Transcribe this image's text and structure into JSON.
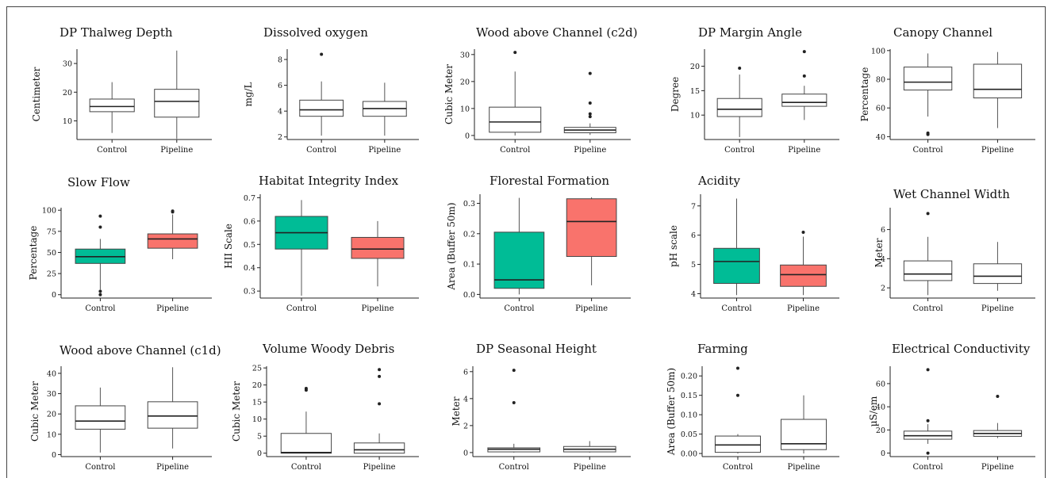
{
  "chart_data": [
    {
      "type": "box",
      "title": "DP Thalweg Depth",
      "ylabel": "Centimeter",
      "yticks": [
        10,
        20,
        30
      ],
      "ylim": [
        3.5,
        35
      ],
      "categories": [
        "Control",
        "Pipeline"
      ],
      "fill": [
        "#ffffff",
        "#ffffff"
      ],
      "boxes": [
        {
          "min": 5.8,
          "q1": 13.2,
          "median": 15,
          "q3": 17.6,
          "max": 23.5,
          "outliers": []
        },
        {
          "min": 3.8,
          "q1": 11.3,
          "median": 16.8,
          "q3": 21,
          "max": 34.5,
          "outliers": []
        }
      ]
    },
    {
      "type": "box",
      "title": "Dissolved oxygen",
      "ylabel": "mg/L",
      "yticks": [
        2,
        4,
        6,
        8
      ],
      "ylim": [
        1.8,
        8.8
      ],
      "categories": [
        "Control",
        "Pipeline"
      ],
      "fill": [
        "#ffffff",
        "#ffffff"
      ],
      "boxes": [
        {
          "min": 2.1,
          "q1": 3.6,
          "median": 4.1,
          "q3": 4.85,
          "max": 6.3,
          "outliers": [
            8.4
          ]
        },
        {
          "min": 2.1,
          "q1": 3.6,
          "median": 4.2,
          "q3": 4.75,
          "max": 6.2,
          "outliers": []
        }
      ]
    },
    {
      "type": "box",
      "title": "Wood above Channel (c2d)",
      "ylabel": "Cubic Meter",
      "yticks": [
        0,
        10,
        20,
        30
      ],
      "ylim": [
        -1.5,
        32
      ],
      "categories": [
        "Control",
        "Pipeline"
      ],
      "fill": [
        "#ffffff",
        "#ffffff"
      ],
      "boxes": [
        {
          "min": 0,
          "q1": 1.2,
          "median": 5,
          "q3": 10.5,
          "max": 23.7,
          "outliers": [
            30.8
          ]
        },
        {
          "min": 0.2,
          "q1": 1,
          "median": 2,
          "q3": 3,
          "max": 4.5,
          "outliers": [
            7,
            8,
            12,
            23
          ]
        }
      ]
    },
    {
      "type": "box",
      "title": "DP Margin Angle",
      "ylabel": "Degree",
      "yticks": [
        10,
        15,
        20
      ],
      "ylim": [
        5,
        23.5
      ],
      "categories": [
        "Control",
        "Pipeline"
      ],
      "fill": [
        "#ffffff",
        "#ffffff"
      ],
      "boxes": [
        {
          "min": 5.5,
          "q1": 9.7,
          "median": 11.2,
          "q3": 13.4,
          "max": 18.3,
          "outliers": [
            19.6
          ]
        },
        {
          "min": 9,
          "q1": 11.8,
          "median": 12.6,
          "q3": 14.3,
          "max": 16,
          "outliers": [
            18,
            23
          ]
        }
      ]
    },
    {
      "type": "box",
      "title": "Canopy Channel",
      "ylabel": "Percentage",
      "yticks": [
        40,
        60,
        80,
        100
      ],
      "ylim": [
        38,
        101
      ],
      "categories": [
        "Control",
        "Pipeline"
      ],
      "fill": [
        "#ffffff",
        "#ffffff"
      ],
      "boxes": [
        {
          "min": 54,
          "q1": 72.5,
          "median": 78,
          "q3": 88.5,
          "max": 98,
          "outliers": [
            41.5,
            42.5
          ]
        },
        {
          "min": 46,
          "q1": 67,
          "median": 73,
          "q3": 90.5,
          "max": 99,
          "outliers": []
        }
      ]
    },
    {
      "type": "box",
      "title": "Slow Flow",
      "ylabel": "Percentage",
      "yticks": [
        0,
        25,
        50,
        75,
        100
      ],
      "ylim": [
        -4,
        103
      ],
      "categories": [
        "Control",
        "Pipeline"
      ],
      "fill": [
        "#00bc96",
        "#f9736c"
      ],
      "boxes": [
        {
          "min": 6,
          "q1": 37,
          "median": 45,
          "q3": 54,
          "max": 66,
          "outliers": [
            0,
            4,
            80,
            93
          ]
        },
        {
          "min": 42,
          "q1": 55,
          "median": 66,
          "q3": 72,
          "max": 95,
          "outliers": [
            98,
            99
          ]
        }
      ]
    },
    {
      "type": "box",
      "title": "Habitat Integrity Index",
      "ylabel": "HII Scale",
      "yticks": [
        0.3,
        0.4,
        0.5,
        0.6,
        0.7
      ],
      "ylim": [
        0.27,
        0.715
      ],
      "categories": [
        "Control",
        "Pipeline"
      ],
      "fill": [
        "#00bc96",
        "#f9736c"
      ],
      "boxes": [
        {
          "min": 0.28,
          "q1": 0.48,
          "median": 0.55,
          "q3": 0.62,
          "max": 0.69,
          "outliers": []
        },
        {
          "min": 0.32,
          "q1": 0.44,
          "median": 0.48,
          "q3": 0.53,
          "max": 0.6,
          "outliers": []
        }
      ]
    },
    {
      "type": "box",
      "title": "Florestal Formation",
      "ylabel": "Area (Buffer 50m)",
      "yticks": [
        0.0,
        0.1,
        0.2,
        0.3
      ],
      "ylim": [
        -0.012,
        0.33
      ],
      "categories": [
        "Control",
        "Pipeline"
      ],
      "fill": [
        "#00bc96",
        "#f9736c"
      ],
      "boxes": [
        {
          "min": 0,
          "q1": 0.02,
          "median": 0.048,
          "q3": 0.205,
          "max": 0.318,
          "outliers": []
        },
        {
          "min": 0.03,
          "q1": 0.125,
          "median": 0.24,
          "q3": 0.315,
          "max": 0.32,
          "outliers": []
        }
      ]
    },
    {
      "type": "box",
      "title": "Acidity",
      "ylabel": "pH scale",
      "yticks": [
        4,
        5,
        6,
        7
      ],
      "ylim": [
        3.85,
        7.4
      ],
      "categories": [
        "Control",
        "Pipeline"
      ],
      "fill": [
        "#00bc96",
        "#f9736c"
      ],
      "boxes": [
        {
          "min": 3.95,
          "q1": 4.35,
          "median": 5.1,
          "q3": 5.55,
          "max": 7.25,
          "outliers": []
        },
        {
          "min": 3.95,
          "q1": 4.25,
          "median": 4.65,
          "q3": 4.98,
          "max": 5.95,
          "outliers": [
            6.1
          ]
        }
      ]
    },
    {
      "type": "box",
      "title": "Wet Channel Width",
      "ylabel": "Meter",
      "yticks": [
        2,
        4,
        6
      ],
      "ylim": [
        1.3,
        7.5
      ],
      "categories": [
        "Control",
        "Pipeline"
      ],
      "fill": [
        "#ffffff",
        "#ffffff"
      ],
      "boxes": [
        {
          "min": 1.5,
          "q1": 2.5,
          "median": 2.95,
          "q3": 3.85,
          "max": 5.5,
          "outliers": [
            7.1
          ]
        },
        {
          "min": 1.8,
          "q1": 2.3,
          "median": 2.8,
          "q3": 3.65,
          "max": 5.15,
          "outliers": []
        }
      ]
    },
    {
      "type": "box",
      "title": "Wood above Channel (c1d)",
      "ylabel": "Cubic Meter",
      "yticks": [
        0,
        10,
        20,
        30,
        40
      ],
      "ylim": [
        -1,
        43.5
      ],
      "categories": [
        "Control",
        "Pipeline"
      ],
      "fill": [
        "#ffffff",
        "#ffffff"
      ],
      "boxes": [
        {
          "min": 1,
          "q1": 12.5,
          "median": 16.5,
          "q3": 24,
          "max": 33,
          "outliers": []
        },
        {
          "min": 3,
          "q1": 13,
          "median": 19,
          "q3": 26,
          "max": 43,
          "outliers": []
        }
      ]
    },
    {
      "type": "box",
      "title": "Volume Woody Debris",
      "ylabel": "Cubic Meter",
      "yticks": [
        0,
        5,
        10,
        15,
        20,
        25
      ],
      "ylim": [
        -1,
        25.5
      ],
      "categories": [
        "Control",
        "Pipeline"
      ],
      "fill": [
        "#ffffff",
        "#ffffff"
      ],
      "boxes": [
        {
          "min": 0,
          "q1": 0,
          "median": 0.2,
          "q3": 5.8,
          "max": 12.2,
          "outliers": [
            18.5,
            19
          ]
        },
        {
          "min": 0,
          "q1": 0,
          "median": 1,
          "q3": 3,
          "max": 5.8,
          "outliers": [
            14.5,
            22.5,
            24.5
          ]
        }
      ]
    },
    {
      "type": "box",
      "title": "DP Seasonal Height",
      "ylabel": "Meter",
      "yticks": [
        0,
        2,
        4,
        6
      ],
      "ylim": [
        -0.3,
        6.4
      ],
      "categories": [
        "Control",
        "Pipeline"
      ],
      "fill": [
        "#ffffff",
        "#ffffff"
      ],
      "boxes": [
        {
          "min": 0,
          "q1": 0.05,
          "median": 0.25,
          "q3": 0.35,
          "max": 0.65,
          "outliers": [
            3.7,
            6.1
          ]
        },
        {
          "min": 0,
          "q1": 0.05,
          "median": 0.25,
          "q3": 0.45,
          "max": 0.85,
          "outliers": []
        }
      ]
    },
    {
      "type": "box",
      "title": "Farming",
      "ylabel": "Area (Buffer 50m)",
      "yticks": [
        0.0,
        0.05,
        0.1,
        0.15,
        0.2
      ],
      "ylim": [
        -0.008,
        0.225
      ],
      "categories": [
        "Control",
        "Pipeline"
      ],
      "fill": [
        "#ffffff",
        "#ffffff"
      ],
      "boxes": [
        {
          "min": 0,
          "q1": 0.003,
          "median": 0.022,
          "q3": 0.045,
          "max": 0.05,
          "outliers": [
            0.15,
            0.22
          ]
        },
        {
          "min": 0,
          "q1": 0.01,
          "median": 0.025,
          "q3": 0.088,
          "max": 0.15,
          "outliers": []
        }
      ]
    },
    {
      "type": "box",
      "title": "Electrical Conductivity",
      "ylabel": "µS/em",
      "yticks": [
        0,
        20,
        40,
        60
      ],
      "ylim": [
        -3,
        75
      ],
      "categories": [
        "Control",
        "Pipeline"
      ],
      "fill": [
        "#ffffff",
        "#ffffff"
      ],
      "boxes": [
        {
          "min": 8,
          "q1": 12,
          "median": 15,
          "q3": 19,
          "max": 25,
          "outliers": [
            0,
            28,
            72
          ]
        },
        {
          "min": 13,
          "q1": 14.5,
          "median": 17,
          "q3": 19.5,
          "max": 26,
          "outliers": [
            49
          ]
        }
      ]
    }
  ]
}
